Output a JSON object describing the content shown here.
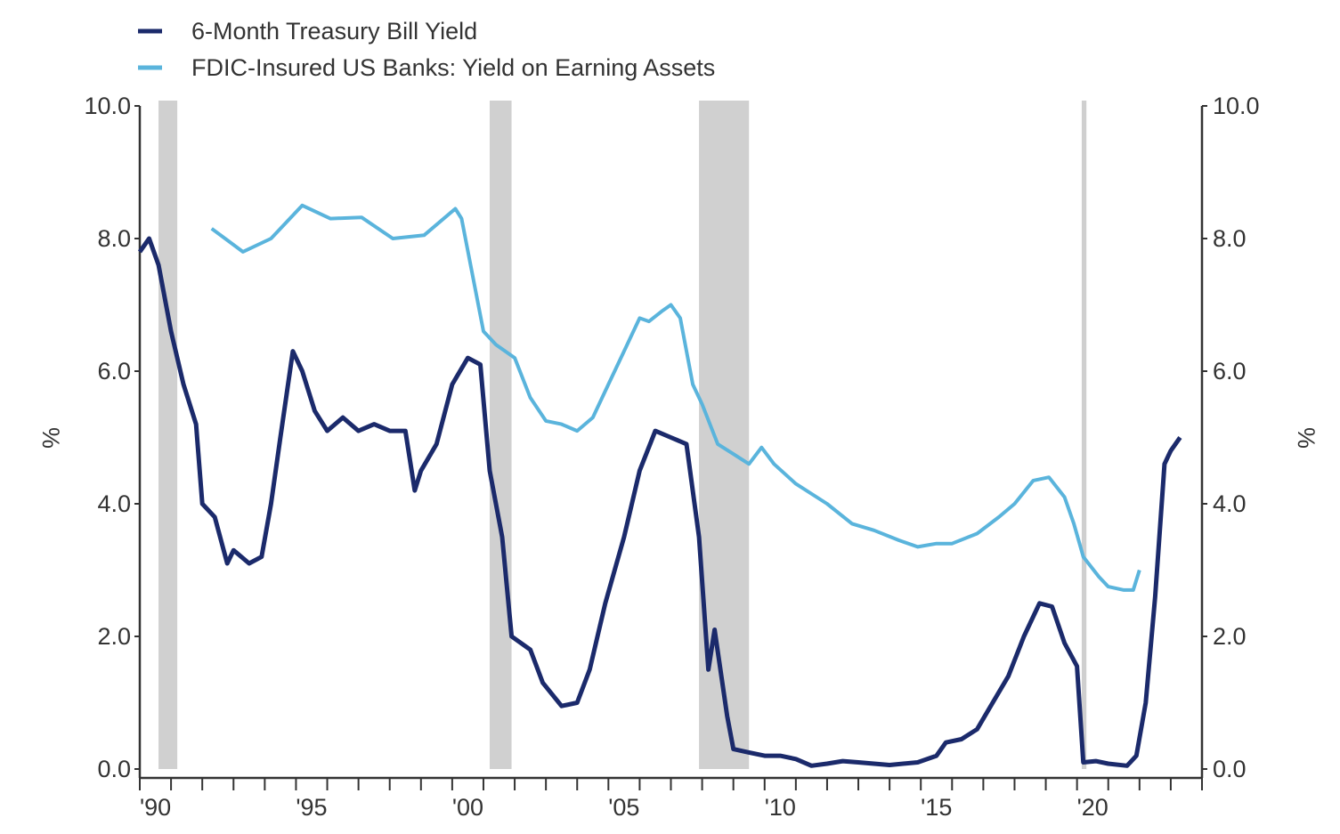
{
  "chart_data": {
    "type": "line",
    "title": "",
    "xlabel": "",
    "ylabel": "%",
    "ylabel_right": "%",
    "xlim": [
      1990,
      2024
    ],
    "ylim": [
      0,
      10
    ],
    "yticks": [
      "0.0",
      "2.0",
      "4.0",
      "6.0",
      "8.0",
      "10.0"
    ],
    "xticks": [
      {
        "year": 1990,
        "label": "'90"
      },
      {
        "year": 1995,
        "label": "'95"
      },
      {
        "year": 2000,
        "label": "'00"
      },
      {
        "year": 2005,
        "label": "'05"
      },
      {
        "year": 2010,
        "label": "'10"
      },
      {
        "year": 2015,
        "label": "'15"
      },
      {
        "year": 2020,
        "label": "'20"
      }
    ],
    "grid": false,
    "legend_placement": "top-left",
    "recessions": [
      [
        1990.6,
        1991.2
      ],
      [
        2001.2,
        2001.9
      ],
      [
        2007.9,
        2009.5
      ],
      [
        2020.15,
        2020.3
      ]
    ],
    "series": [
      {
        "name": "6-Month Treasury Bill Yield",
        "color": "#1b2a6b",
        "x": [
          1990.0,
          1990.3,
          1990.6,
          1991.0,
          1991.4,
          1991.8,
          1992.0,
          1992.4,
          1992.8,
          1993.0,
          1993.5,
          1993.9,
          1994.2,
          1994.5,
          1994.9,
          1995.2,
          1995.6,
          1996.0,
          1996.5,
          1997.0,
          1997.5,
          1998.0,
          1998.5,
          1998.8,
          1999.0,
          1999.5,
          2000.0,
          2000.5,
          2000.9,
          2001.2,
          2001.6,
          2001.9,
          2002.5,
          2002.9,
          2003.5,
          2004.0,
          2004.4,
          2004.9,
          2005.5,
          2006.0,
          2006.5,
          2007.0,
          2007.5,
          2007.9,
          2008.2,
          2008.4,
          2008.8,
          2009.0,
          2009.5,
          2010.0,
          2010.5,
          2011.0,
          2011.5,
          2012.0,
          2012.5,
          2013.0,
          2014.0,
          2014.9,
          2015.5,
          2015.8,
          2016.3,
          2016.8,
          2017.3,
          2017.8,
          2018.3,
          2018.8,
          2019.2,
          2019.6,
          2020.0,
          2020.2,
          2020.6,
          2021.0,
          2021.6,
          2021.9,
          2022.2,
          2022.5,
          2022.8,
          2023.0,
          2023.3
        ],
        "values": [
          7.8,
          8.0,
          7.6,
          6.6,
          5.8,
          5.2,
          4.0,
          3.8,
          3.1,
          3.3,
          3.1,
          3.2,
          4.0,
          5.0,
          6.3,
          6.0,
          5.4,
          5.1,
          5.3,
          5.1,
          5.2,
          5.1,
          5.1,
          4.2,
          4.5,
          4.9,
          5.8,
          6.2,
          6.1,
          4.5,
          3.5,
          2.0,
          1.8,
          1.3,
          0.95,
          1.0,
          1.5,
          2.5,
          3.5,
          4.5,
          5.1,
          5.0,
          4.9,
          3.5,
          1.5,
          2.1,
          0.8,
          0.3,
          0.25,
          0.2,
          0.2,
          0.15,
          0.05,
          0.08,
          0.12,
          0.1,
          0.06,
          0.1,
          0.2,
          0.4,
          0.45,
          0.6,
          1.0,
          1.4,
          2.0,
          2.5,
          2.45,
          1.9,
          1.55,
          0.1,
          0.12,
          0.08,
          0.05,
          0.2,
          1.0,
          2.6,
          4.6,
          4.8,
          5.0
        ]
      },
      {
        "name": "FDIC-Insured US Banks: Yield on Earning Assets",
        "color": "#5ab4dc",
        "x": [
          1992.3,
          1993.3,
          1994.2,
          1995.2,
          1996.1,
          1997.1,
          1998.1,
          1999.1,
          2000.1,
          2000.3,
          2001.0,
          2001.4,
          2002.0,
          2002.5,
          2003.0,
          2003.5,
          2004.0,
          2004.5,
          2005.0,
          2005.5,
          2006.0,
          2006.3,
          2006.7,
          2007.0,
          2007.3,
          2007.7,
          2008.0,
          2008.5,
          2009.0,
          2009.5,
          2009.9,
          2010.3,
          2011.0,
          2012.0,
          2012.8,
          2013.5,
          2014.3,
          2014.9,
          2015.5,
          2016.0,
          2016.8,
          2017.5,
          2018.0,
          2018.6,
          2019.1,
          2019.6,
          2019.9,
          2020.2,
          2020.7,
          2021.0,
          2021.5,
          2021.8,
          2022.0
        ],
        "values": [
          8.15,
          7.8,
          8.0,
          8.5,
          8.3,
          8.32,
          8.0,
          8.05,
          8.45,
          8.3,
          6.6,
          6.4,
          6.2,
          5.6,
          5.25,
          5.2,
          5.1,
          5.3,
          5.8,
          6.3,
          6.8,
          6.75,
          6.9,
          7.0,
          6.8,
          5.8,
          5.5,
          4.9,
          4.75,
          4.6,
          4.85,
          4.6,
          4.3,
          4.0,
          3.7,
          3.6,
          3.45,
          3.35,
          3.4,
          3.4,
          3.55,
          3.8,
          4.0,
          4.35,
          4.4,
          4.1,
          3.7,
          3.2,
          2.9,
          2.75,
          2.7,
          2.7,
          3.0
        ]
      }
    ]
  }
}
